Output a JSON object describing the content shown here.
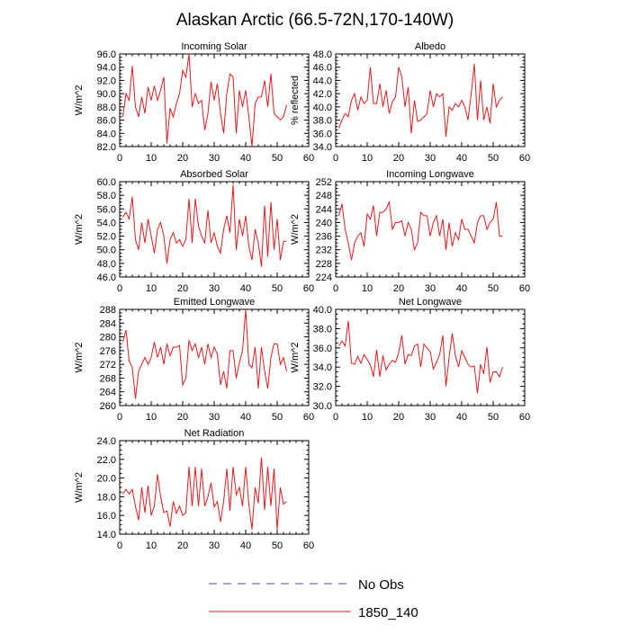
{
  "title": "Alaskan Arctic (66.5-72N,170-140W)",
  "legend": {
    "items": [
      {
        "label": "No Obs",
        "color": "#4b4bb5",
        "style": "dashed"
      },
      {
        "label": "1850_140",
        "color": "#e41a1c",
        "style": "solid"
      }
    ]
  },
  "chart_data": [
    {
      "type": "line",
      "title": "Incoming Solar",
      "ylabel": "W/m^2",
      "xlim": [
        0,
        60
      ],
      "xticks": [
        0,
        10,
        20,
        30,
        40,
        50,
        60
      ],
      "ylim": [
        82,
        96
      ],
      "yticks": [
        82.0,
        84.0,
        86.0,
        88.0,
        90.0,
        92.0,
        94.0,
        96.0
      ],
      "ytick_decimals": 1,
      "series": [
        {
          "name": "1850_140",
          "color": "#e41a1c",
          "x": [
            1,
            2,
            3,
            4,
            5,
            6,
            7,
            8,
            9,
            10,
            11,
            12,
            13,
            14,
            15,
            16,
            17,
            18,
            19,
            20,
            21,
            22,
            23,
            24,
            25,
            26,
            27,
            28,
            29,
            30,
            31,
            32,
            33,
            34,
            35,
            36,
            37,
            38,
            39,
            40,
            41,
            42,
            43,
            44,
            45,
            46,
            47,
            48,
            49,
            50,
            51,
            52,
            53
          ],
          "y": [
            86.5,
            90.0,
            89.0,
            94.2,
            88.0,
            86.5,
            89.5,
            87.0,
            91.0,
            89.0,
            91.2,
            89.0,
            90.5,
            92.5,
            82.5,
            87.8,
            86.5,
            88.5,
            90.0,
            93.5,
            92.5,
            96.0,
            88.0,
            90.0,
            88.5,
            89.0,
            84.5,
            87.0,
            91.8,
            89.0,
            91.5,
            87.0,
            84.0,
            90.0,
            93.0,
            92.5,
            84.0,
            90.5,
            88.0,
            90.5,
            86.5,
            82.0,
            88.5,
            89.5,
            89.5,
            92.0,
            88.0,
            93.0,
            87.0,
            86.5,
            86.0,
            86.5,
            88.3
          ]
        }
      ]
    },
    {
      "type": "line",
      "title": "Albedo",
      "ylabel": "% reflected",
      "xlim": [
        0,
        60
      ],
      "xticks": [
        0,
        10,
        20,
        30,
        40,
        50,
        60
      ],
      "ylim": [
        34,
        48
      ],
      "yticks": [
        34.0,
        36.0,
        38.0,
        40.0,
        42.0,
        44.0,
        46.0,
        48.0
      ],
      "ytick_decimals": 1,
      "series": [
        {
          "name": "1850_140",
          "color": "#e41a1c",
          "x": [
            1,
            2,
            3,
            4,
            5,
            6,
            7,
            8,
            9,
            10,
            11,
            12,
            13,
            14,
            15,
            16,
            17,
            18,
            19,
            20,
            21,
            22,
            23,
            24,
            25,
            26,
            27,
            28,
            29,
            30,
            31,
            32,
            33,
            34,
            35,
            36,
            37,
            38,
            39,
            40,
            41,
            42,
            43,
            44,
            45,
            46,
            47,
            48,
            49,
            50,
            51,
            52,
            53
          ],
          "y": [
            36.8,
            38.0,
            39.0,
            38.5,
            41.0,
            42.0,
            39.5,
            41.5,
            40.5,
            41.0,
            46.0,
            40.5,
            40.5,
            43.5,
            40.0,
            42.5,
            39.0,
            40.8,
            41.5,
            46.0,
            44.5,
            40.0,
            43.0,
            36.0,
            41.0,
            37.8,
            38.0,
            38.5,
            39.0,
            42.5,
            40.0,
            42.0,
            41.5,
            42.0,
            35.5,
            40.0,
            39.5,
            40.5,
            40.0,
            41.0,
            40.0,
            38.0,
            42.0,
            46.5,
            38.0,
            44.0,
            38.0,
            40.0,
            37.5,
            43.5,
            40.0,
            41.0,
            41.5
          ]
        }
      ]
    },
    {
      "type": "line",
      "title": "Absorbed Solar",
      "ylabel": "W/m^2",
      "xlim": [
        0,
        60
      ],
      "xticks": [
        0,
        10,
        20,
        30,
        40,
        50,
        60
      ],
      "ylim": [
        46,
        60
      ],
      "yticks": [
        46.0,
        48.0,
        50.0,
        52.0,
        54.0,
        56.0,
        58.0,
        60.0
      ],
      "ytick_decimals": 1,
      "series": [
        {
          "name": "1850_140",
          "color": "#e41a1c",
          "x": [
            1,
            2,
            3,
            4,
            5,
            6,
            7,
            8,
            9,
            10,
            11,
            12,
            13,
            14,
            15,
            16,
            17,
            18,
            19,
            20,
            21,
            22,
            23,
            24,
            25,
            26,
            27,
            28,
            29,
            30,
            31,
            32,
            33,
            34,
            35,
            36,
            37,
            38,
            39,
            40,
            41,
            42,
            43,
            44,
            45,
            46,
            47,
            48,
            49,
            50,
            51,
            52,
            53
          ],
          "y": [
            54.8,
            55.5,
            54.5,
            57.8,
            51.5,
            50.0,
            54.0,
            51.0,
            54.5,
            52.0,
            49.5,
            53.0,
            54.0,
            52.0,
            48.0,
            51.5,
            52.5,
            51.0,
            51.5,
            50.5,
            51.5,
            57.5,
            51.0,
            57.5,
            53.5,
            52.0,
            51.0,
            55.8,
            51.0,
            52.5,
            50.5,
            49.5,
            53.0,
            55.0,
            52.5,
            59.5,
            50.0,
            54.5,
            52.0,
            55.0,
            50.5,
            48.5,
            53.0,
            51.0,
            47.5,
            56.5,
            49.0,
            57.0,
            50.0,
            54.5,
            48.5,
            51.2,
            51.3
          ]
        }
      ]
    },
    {
      "type": "line",
      "title": "Incoming Longwave",
      "ylabel": "W/m^2",
      "xlim": [
        0,
        60
      ],
      "xticks": [
        0,
        10,
        20,
        30,
        40,
        50,
        60
      ],
      "ylim": [
        224,
        252
      ],
      "yticks": [
        224,
        228,
        232,
        236,
        240,
        244,
        248,
        252
      ],
      "ytick_decimals": 0,
      "series": [
        {
          "name": "1850_140",
          "color": "#e41a1c",
          "x": [
            1,
            2,
            3,
            4,
            5,
            6,
            7,
            8,
            9,
            10,
            11,
            12,
            13,
            14,
            15,
            16,
            17,
            18,
            19,
            20,
            21,
            22,
            23,
            24,
            25,
            26,
            27,
            28,
            29,
            30,
            31,
            32,
            33,
            34,
            35,
            36,
            37,
            38,
            39,
            40,
            41,
            42,
            43,
            44,
            45,
            46,
            47,
            48,
            49,
            50,
            51,
            52,
            53
          ],
          "y": [
            242,
            245.5,
            238,
            234,
            229,
            234,
            236,
            237,
            233,
            242.5,
            241,
            245,
            236,
            243,
            243,
            244,
            246,
            238,
            240,
            240,
            240.5,
            236,
            240,
            238,
            232,
            234,
            243,
            242,
            242,
            236,
            240,
            242,
            236,
            241,
            232,
            240,
            233,
            237,
            235,
            241,
            238,
            238,
            236,
            234,
            240,
            242,
            242,
            238,
            240,
            241,
            246,
            236,
            236
          ]
        }
      ]
    },
    {
      "type": "line",
      "title": "Emitted Longwave",
      "ylabel": "W/m^2",
      "xlim": [
        0,
        60
      ],
      "xticks": [
        0,
        10,
        20,
        30,
        40,
        50,
        60
      ],
      "ylim": [
        260,
        288
      ],
      "yticks": [
        260,
        264,
        268,
        272,
        276,
        280,
        284,
        288
      ],
      "ytick_decimals": 0,
      "series": [
        {
          "name": "1850_140",
          "color": "#e41a1c",
          "x": [
            1,
            2,
            3,
            4,
            5,
            6,
            7,
            8,
            9,
            10,
            11,
            12,
            13,
            14,
            15,
            16,
            17,
            18,
            19,
            20,
            21,
            22,
            23,
            24,
            25,
            26,
            27,
            28,
            29,
            30,
            31,
            32,
            33,
            34,
            35,
            36,
            37,
            38,
            39,
            40,
            41,
            42,
            43,
            44,
            45,
            46,
            47,
            48,
            49,
            50,
            51,
            52,
            53
          ],
          "y": [
            278.5,
            282,
            273,
            271,
            262,
            270,
            272,
            274,
            272,
            274,
            278.5,
            274,
            277,
            272,
            278,
            274.5,
            277,
            277,
            277.5,
            266,
            268,
            279,
            276,
            278,
            274,
            277,
            272,
            278,
            274,
            277,
            275,
            266,
            270,
            265,
            276,
            276,
            268,
            272.5,
            276,
            288,
            272,
            271,
            277,
            265,
            277,
            270,
            265,
            274,
            278,
            278,
            272,
            274,
            270
          ]
        }
      ]
    },
    {
      "type": "line",
      "title": "Net Longwave",
      "ylabel": "W/m^2",
      "xlim": [
        0,
        60
      ],
      "xticks": [
        0,
        10,
        20,
        30,
        40,
        50,
        60
      ],
      "ylim": [
        30,
        40
      ],
      "yticks": [
        30.0,
        32.0,
        34.0,
        36.0,
        38.0,
        40.0
      ],
      "ytick_decimals": 1,
      "series": [
        {
          "name": "1850_140",
          "color": "#e41a1c",
          "x": [
            1,
            2,
            3,
            4,
            5,
            6,
            7,
            8,
            9,
            10,
            11,
            12,
            13,
            14,
            15,
            16,
            17,
            18,
            19,
            20,
            21,
            22,
            23,
            24,
            25,
            26,
            27,
            28,
            29,
            30,
            31,
            32,
            33,
            34,
            35,
            36,
            37,
            38,
            39,
            40,
            41,
            42,
            43,
            44,
            45,
            46,
            47,
            48,
            49,
            50,
            51,
            52,
            53
          ],
          "y": [
            36.2,
            36.7,
            36.2,
            38.8,
            34.4,
            34.3,
            35.1,
            34.4,
            35.3,
            34.8,
            34.2,
            33.0,
            35.8,
            33.0,
            35.2,
            33.7,
            34.3,
            34.7,
            34.5,
            35.5,
            37.3,
            34.3,
            35.3,
            35.2,
            36.2,
            36.4,
            34.0,
            36.4,
            36.0,
            35.6,
            33.8,
            34.5,
            35.3,
            37.3,
            32.0,
            35.0,
            37.5,
            35.2,
            34.0,
            35.7,
            35.0,
            34.3,
            34.0,
            34.1,
            31.3,
            34.3,
            33.3,
            36.1,
            32.4,
            33.5,
            33.5,
            33.0,
            34.0
          ]
        }
      ]
    },
    {
      "type": "line",
      "title": "Net Radiation",
      "ylabel": "W/m^2",
      "xlim": [
        0,
        60
      ],
      "xticks": [
        0,
        10,
        20,
        30,
        40,
        50,
        60
      ],
      "ylim": [
        14,
        24
      ],
      "yticks": [
        14.0,
        16.0,
        18.0,
        20.0,
        22.0,
        24.0
      ],
      "ytick_decimals": 1,
      "series": [
        {
          "name": "1850_140",
          "color": "#e41a1c",
          "x": [
            1,
            2,
            3,
            4,
            5,
            6,
            7,
            8,
            9,
            10,
            11,
            12,
            13,
            14,
            15,
            16,
            17,
            18,
            19,
            20,
            21,
            22,
            23,
            24,
            25,
            26,
            27,
            28,
            29,
            30,
            31,
            32,
            33,
            34,
            35,
            36,
            37,
            38,
            39,
            40,
            41,
            42,
            43,
            44,
            45,
            46,
            47,
            48,
            49,
            50,
            51,
            52,
            53
          ],
          "y": [
            18.3,
            18.8,
            18.3,
            18.8,
            17.0,
            15.5,
            19.0,
            16.3,
            19.2,
            16.0,
            17.0,
            20.4,
            18.0,
            16.3,
            16.5,
            14.8,
            17.5,
            16.2,
            17.0,
            16.0,
            16.3,
            21.2,
            17.0,
            21.2,
            17.0,
            21.0,
            17.0,
            18.0,
            19.5,
            16.9,
            17.5,
            15.3,
            17.5,
            21.0,
            16.5,
            21.2,
            18.2,
            19.0,
            17.0,
            21.2,
            17.2,
            14.5,
            19.0,
            17.3,
            22.2,
            16.6,
            21.2,
            17.0,
            21.0,
            14.5,
            19.0,
            17.2,
            17.5
          ]
        }
      ]
    }
  ]
}
